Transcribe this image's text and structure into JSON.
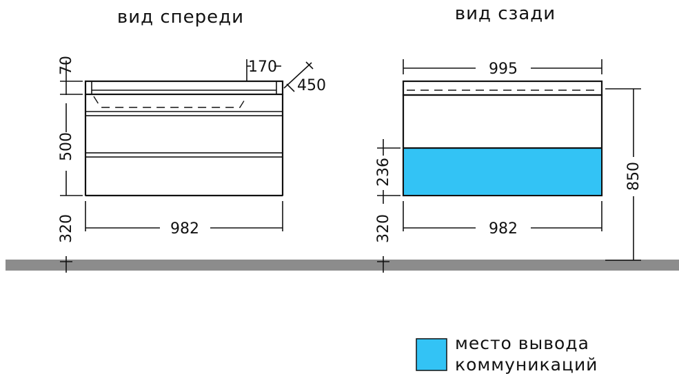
{
  "views": {
    "front": {
      "title": "вид спереди",
      "dims": {
        "top_height": "70",
        "tap_offset": "170",
        "tap_depth": "450",
        "body_height": "500",
        "leg_height": "320",
        "width": "982"
      }
    },
    "back": {
      "title": "вид сзади",
      "dims": {
        "top_width": "995",
        "comm_height": "236",
        "leg_height": "320",
        "width": "982",
        "total_height": "850"
      }
    }
  },
  "legend": {
    "line1": "место вывода",
    "line2": "коммуникаций"
  },
  "colors": {
    "communication_zone": "#33c3f5",
    "floor": "#8c8c8c",
    "line": "#111111"
  }
}
